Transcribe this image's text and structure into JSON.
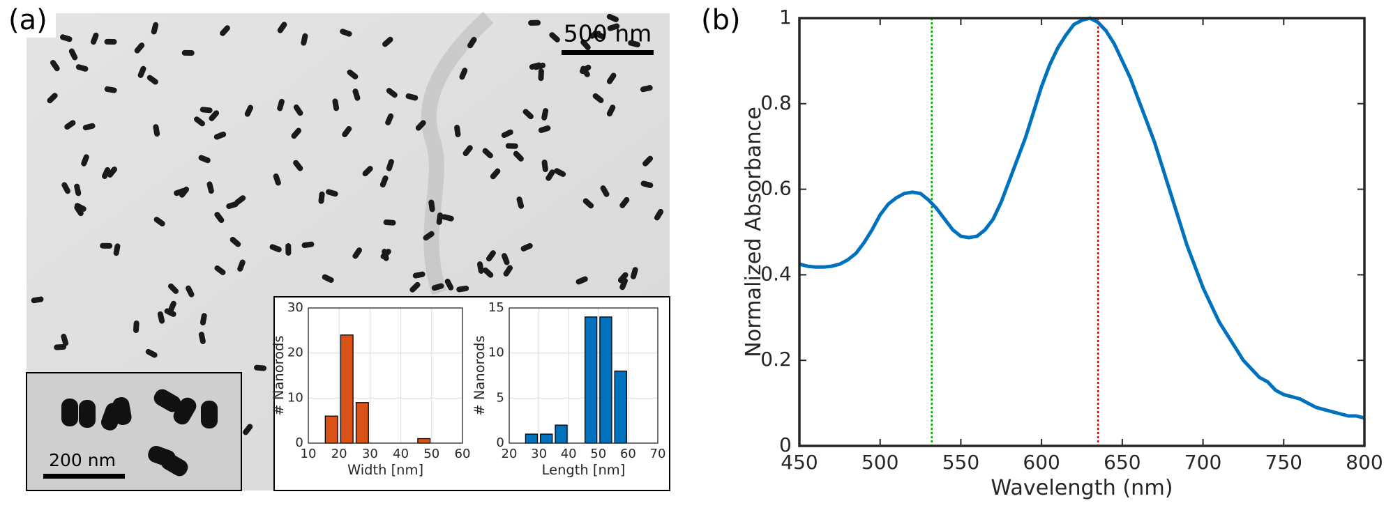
{
  "panel_labels": [
    "(a)",
    "(b)"
  ],
  "scale_bars": [
    "500 nm",
    "200 nm"
  ],
  "chart_data": [
    {
      "type": "histogram",
      "x_label": "Width [nm]",
      "y_label": "# Nanorods",
      "color": "#d95319",
      "bins": [
        15,
        20,
        25,
        30,
        35,
        40,
        45,
        50
      ],
      "values": [
        6,
        24,
        9,
        0,
        0,
        0,
        1
      ],
      "xlim": [
        10,
        60
      ],
      "xticks": [
        10,
        20,
        30,
        40,
        50,
        60
      ],
      "ylim": [
        0,
        30
      ],
      "yticks": [
        0,
        10,
        20,
        30
      ],
      "grid": true
    },
    {
      "type": "histogram",
      "x_label": "Length [nm]",
      "y_label": "# Nanorods",
      "color": "#0072bd",
      "bins": [
        25,
        30,
        35,
        40,
        45,
        50,
        55,
        60
      ],
      "values": [
        1,
        1,
        2,
        0,
        14,
        14,
        8
      ],
      "xlim": [
        20,
        70
      ],
      "xticks": [
        20,
        30,
        40,
        50,
        60,
        70
      ],
      "ylim": [
        0,
        15
      ],
      "yticks": [
        0,
        5,
        10,
        15
      ],
      "grid": true
    },
    {
      "type": "line",
      "x_label": "Wavelength (nm)",
      "y_label": "Normalized Absorbance",
      "color": "#0072bd",
      "x": [
        450,
        455,
        460,
        465,
        470,
        475,
        480,
        485,
        490,
        495,
        500,
        505,
        510,
        515,
        520,
        525,
        530,
        535,
        540,
        545,
        550,
        555,
        560,
        565,
        570,
        575,
        580,
        585,
        590,
        595,
        600,
        605,
        610,
        615,
        620,
        625,
        630,
        635,
        640,
        645,
        650,
        655,
        660,
        665,
        670,
        675,
        680,
        685,
        690,
        695,
        700,
        705,
        710,
        715,
        720,
        725,
        730,
        735,
        740,
        745,
        750,
        755,
        760,
        765,
        770,
        775,
        780,
        785,
        790,
        795,
        800
      ],
      "values": [
        0.425,
        0.42,
        0.418,
        0.418,
        0.42,
        0.425,
        0.435,
        0.45,
        0.475,
        0.505,
        0.54,
        0.565,
        0.58,
        0.59,
        0.593,
        0.59,
        0.575,
        0.555,
        0.53,
        0.505,
        0.49,
        0.487,
        0.49,
        0.505,
        0.53,
        0.57,
        0.62,
        0.67,
        0.72,
        0.78,
        0.84,
        0.89,
        0.93,
        0.96,
        0.985,
        0.995,
        1.0,
        0.99,
        0.97,
        0.94,
        0.9,
        0.86,
        0.81,
        0.76,
        0.71,
        0.65,
        0.59,
        0.53,
        0.47,
        0.42,
        0.37,
        0.33,
        0.29,
        0.26,
        0.23,
        0.2,
        0.18,
        0.16,
        0.15,
        0.13,
        0.12,
        0.115,
        0.11,
        0.1,
        0.09,
        0.085,
        0.08,
        0.075,
        0.07,
        0.07,
        0.065
      ],
      "vlines": [
        {
          "x": 532,
          "color": "#00aa00"
        },
        {
          "x": 635,
          "color": "#e00000"
        }
      ],
      "xlim": [
        450,
        800
      ],
      "xticks": [
        450,
        500,
        550,
        600,
        650,
        700,
        750,
        800
      ],
      "ylim": [
        0,
        1
      ],
      "yticks": [
        0,
        0.2,
        0.4,
        0.6,
        0.8,
        1
      ],
      "grid": false
    }
  ]
}
